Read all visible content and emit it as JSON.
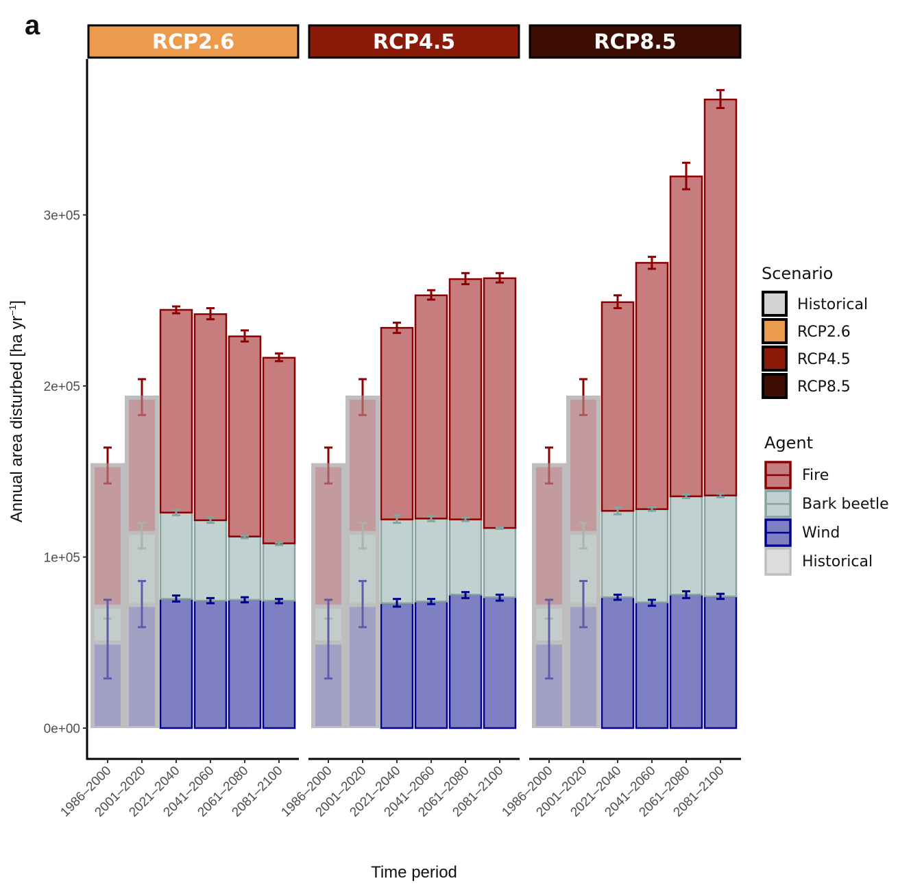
{
  "panel_letter": "a",
  "chart_data": {
    "type": "bar",
    "stacked": true,
    "facets": [
      "RCP2.6",
      "RCP4.5",
      "RCP8.5"
    ],
    "facet_colors": {
      "RCP2.6": "#EC9B4C",
      "RCP4.5": "#8B1A08",
      "RCP8.5": "#3D0D04"
    },
    "categories": [
      "1986–2000",
      "2001–2020",
      "2021–2040",
      "2041–2060",
      "2061–2080",
      "2081–2100"
    ],
    "historical_categories": [
      "1986–2000",
      "2001–2020"
    ],
    "xlabel": "Time period",
    "ylabel": "Annual area disturbed [ha yr",
    "ylabel_sup": "−1",
    "ylabel_end": "]",
    "ylim": [
      -18000,
      390000
    ],
    "yticks": [
      0,
      100000,
      200000,
      300000
    ],
    "ytick_labels": [
      "0e+00",
      "1e+05",
      "2e+05",
      "3e+05"
    ],
    "grid": false,
    "agents": [
      "Wind",
      "Bark beetle",
      "Fire"
    ],
    "agent_colors": {
      "Fire": {
        "fill": "#C77D7D",
        "stroke": "#8B0000"
      },
      "Bark beetle": {
        "fill": "#C0D1CF",
        "stroke": "#86A39F"
      },
      "Wind": {
        "fill": "#7F7FC4",
        "stroke": "#00008B"
      }
    },
    "historical_style": {
      "frame": "#BEBEBE",
      "fire": "#C39A9D",
      "beetle": "#C4CCCB",
      "wind": "#A0A0C4",
      "fire_err": "#A75A5E",
      "beetle_err": "#A5B5B3",
      "wind_err": "#5C5CA8"
    },
    "series_cumulative_note": "Values are cumulative stack tops (Wind, Wind+Bark beetle, Total) in ha/yr",
    "data": {
      "RCP2.6": [
        {
          "wind": 50000,
          "beetle": 71000,
          "total": 152500,
          "wind_err": [
            29000,
            75000
          ],
          "beetle_err": [
            64000,
            75000
          ],
          "total_err": [
            143000,
            164000
          ]
        },
        {
          "wind": 72000,
          "beetle": 114000,
          "total": 192000,
          "wind_err": [
            59000,
            86000
          ],
          "beetle_err": [
            105000,
            120000
          ],
          "total_err": [
            183000,
            204000
          ]
        },
        {
          "wind": 75500,
          "beetle": 126000,
          "total": 244500,
          "wind_err": [
            74000,
            77500
          ],
          "beetle_err": [
            124500,
            127500
          ],
          "total_err": [
            242500,
            246500
          ]
        },
        {
          "wind": 74500,
          "beetle": 121500,
          "total": 242000,
          "wind_err": [
            73000,
            76000
          ],
          "beetle_err": [
            120000,
            123000
          ],
          "total_err": [
            239000,
            245500
          ]
        },
        {
          "wind": 75000,
          "beetle": 112000,
          "total": 229000,
          "wind_err": [
            73500,
            76500
          ],
          "beetle_err": [
            111000,
            112500
          ],
          "total_err": [
            226000,
            232500
          ]
        },
        {
          "wind": 74500,
          "beetle": 108000,
          "total": 216500,
          "wind_err": [
            73000,
            75500
          ],
          "beetle_err": [
            107000,
            108500
          ],
          "total_err": [
            214500,
            219000
          ]
        }
      ],
      "RCP4.5": [
        {
          "wind": 50000,
          "beetle": 71000,
          "total": 152500,
          "wind_err": [
            29000,
            75000
          ],
          "beetle_err": [
            64000,
            75000
          ],
          "total_err": [
            143000,
            164000
          ]
        },
        {
          "wind": 72000,
          "beetle": 114000,
          "total": 192000,
          "wind_err": [
            59000,
            86000
          ],
          "beetle_err": [
            105000,
            120000
          ],
          "total_err": [
            183000,
            204000
          ]
        },
        {
          "wind": 73000,
          "beetle": 122000,
          "total": 234000,
          "wind_err": [
            71000,
            75500
          ],
          "beetle_err": [
            120000,
            124500
          ],
          "total_err": [
            231000,
            237000
          ]
        },
        {
          "wind": 74000,
          "beetle": 122500,
          "total": 253000,
          "wind_err": [
            72500,
            75500
          ],
          "beetle_err": [
            121000,
            124000
          ],
          "total_err": [
            250500,
            256000
          ]
        },
        {
          "wind": 78000,
          "beetle": 122000,
          "total": 262500,
          "wind_err": [
            76000,
            79500
          ],
          "beetle_err": [
            121000,
            123000
          ],
          "total_err": [
            259500,
            266000
          ]
        },
        {
          "wind": 76500,
          "beetle": 117000,
          "total": 263000,
          "wind_err": [
            74500,
            78000
          ],
          "beetle_err": [
            116500,
            117500
          ],
          "total_err": [
            260500,
            266000
          ]
        }
      ],
      "RCP8.5": [
        {
          "wind": 50000,
          "beetle": 71000,
          "total": 152500,
          "wind_err": [
            29000,
            75000
          ],
          "beetle_err": [
            64000,
            75000
          ],
          "total_err": [
            143000,
            164000
          ]
        },
        {
          "wind": 72000,
          "beetle": 114000,
          "total": 192000,
          "wind_err": [
            59000,
            86000
          ],
          "beetle_err": [
            105000,
            120000
          ],
          "total_err": [
            183000,
            204000
          ]
        },
        {
          "wind": 76500,
          "beetle": 127000,
          "total": 249000,
          "wind_err": [
            75000,
            78000
          ],
          "beetle_err": [
            125000,
            129000
          ],
          "total_err": [
            245500,
            253000
          ]
        },
        {
          "wind": 73500,
          "beetle": 128000,
          "total": 272000,
          "wind_err": [
            71500,
            75000
          ],
          "beetle_err": [
            127000,
            129000
          ],
          "total_err": [
            268500,
            275500
          ]
        },
        {
          "wind": 78000,
          "beetle": 135500,
          "total": 322500,
          "wind_err": [
            76000,
            80000
          ],
          "beetle_err": [
            134500,
            136500
          ],
          "total_err": [
            315000,
            330500
          ]
        },
        {
          "wind": 77000,
          "beetle": 136000,
          "total": 367500,
          "wind_err": [
            75500,
            78500
          ],
          "beetle_err": [
            135000,
            137000
          ],
          "total_err": [
            362500,
            373000
          ]
        }
      ]
    },
    "legends": {
      "scenario": {
        "title": "Scenario",
        "items": [
          {
            "label": "Historical",
            "color": "#D3D3D3"
          },
          {
            "label": "RCP2.6",
            "color": "#EC9B4C"
          },
          {
            "label": "RCP4.5",
            "color": "#8B1A08"
          },
          {
            "label": "RCP8.5",
            "color": "#3D0D04"
          }
        ]
      },
      "agent": {
        "title": "Agent",
        "items": [
          {
            "label": "Fire",
            "fill": "#C77D7D",
            "stroke": "#8B0000"
          },
          {
            "label": "Bark beetle",
            "fill": "#C0D1CF",
            "stroke": "#86A39F"
          },
          {
            "label": "Wind",
            "fill": "#7F7FC4",
            "stroke": "#00008B"
          },
          {
            "label": "Historical",
            "fill": "#DCDCDC",
            "stroke": "#BEBEBE"
          }
        ]
      }
    },
    "legend_position": "right"
  }
}
